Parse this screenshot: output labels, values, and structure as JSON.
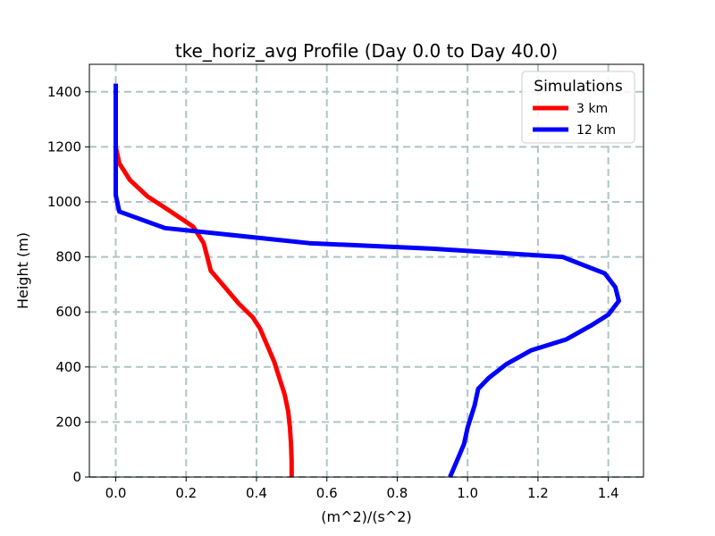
{
  "chart_data": {
    "type": "line",
    "title": "tke_horiz_avg Profile (Day 0.0 to Day 40.0)",
    "xlabel": "(m^2)/(s^2)",
    "ylabel": "Height (m)",
    "xlim": [
      -0.075,
      1.5
    ],
    "ylim": [
      0,
      1500
    ],
    "xticks": [
      0.0,
      0.2,
      0.4,
      0.6,
      0.8,
      1.0,
      1.2,
      1.4
    ],
    "xtick_labels": [
      "0.0",
      "0.2",
      "0.4",
      "0.6",
      "0.8",
      "1.0",
      "1.2",
      "1.4"
    ],
    "yticks": [
      0,
      200,
      400,
      600,
      800,
      1000,
      1200,
      1400
    ],
    "ytick_labels": [
      "0",
      "200",
      "400",
      "600",
      "800",
      "1000",
      "1200",
      "1400"
    ],
    "grid": true,
    "legend": {
      "title": "Simulations",
      "position": "top-right"
    },
    "series": [
      {
        "name": "3 km",
        "color": "#ff0000",
        "points": [
          [
            0.5,
            0
          ],
          [
            0.5,
            60
          ],
          [
            0.498,
            120
          ],
          [
            0.495,
            180
          ],
          [
            0.49,
            240
          ],
          [
            0.48,
            300
          ],
          [
            0.465,
            360
          ],
          [
            0.45,
            420
          ],
          [
            0.43,
            480
          ],
          [
            0.41,
            540
          ],
          [
            0.39,
            580
          ],
          [
            0.35,
            630
          ],
          [
            0.31,
            690
          ],
          [
            0.29,
            720
          ],
          [
            0.27,
            750
          ],
          [
            0.26,
            800
          ],
          [
            0.25,
            850
          ],
          [
            0.22,
            910
          ],
          [
            0.15,
            970
          ],
          [
            0.09,
            1020
          ],
          [
            0.04,
            1080
          ],
          [
            0.01,
            1140
          ],
          [
            0.0,
            1200
          ],
          [
            0.0,
            1430
          ]
        ]
      },
      {
        "name": "12 km",
        "color": "#0000ff",
        "points": [
          [
            0.95,
            0
          ],
          [
            0.97,
            60
          ],
          [
            0.99,
            120
          ],
          [
            1.0,
            180
          ],
          [
            1.02,
            260
          ],
          [
            1.03,
            320
          ],
          [
            1.06,
            360
          ],
          [
            1.11,
            410
          ],
          [
            1.18,
            460
          ],
          [
            1.28,
            500
          ],
          [
            1.35,
            550
          ],
          [
            1.4,
            590
          ],
          [
            1.43,
            640
          ],
          [
            1.42,
            690
          ],
          [
            1.39,
            740
          ],
          [
            1.27,
            800
          ],
          [
            0.9,
            830
          ],
          [
            0.55,
            850
          ],
          [
            0.4,
            870
          ],
          [
            0.14,
            905
          ],
          [
            0.01,
            965
          ],
          [
            0.0,
            1025
          ],
          [
            0.0,
            1430
          ]
        ]
      }
    ]
  }
}
